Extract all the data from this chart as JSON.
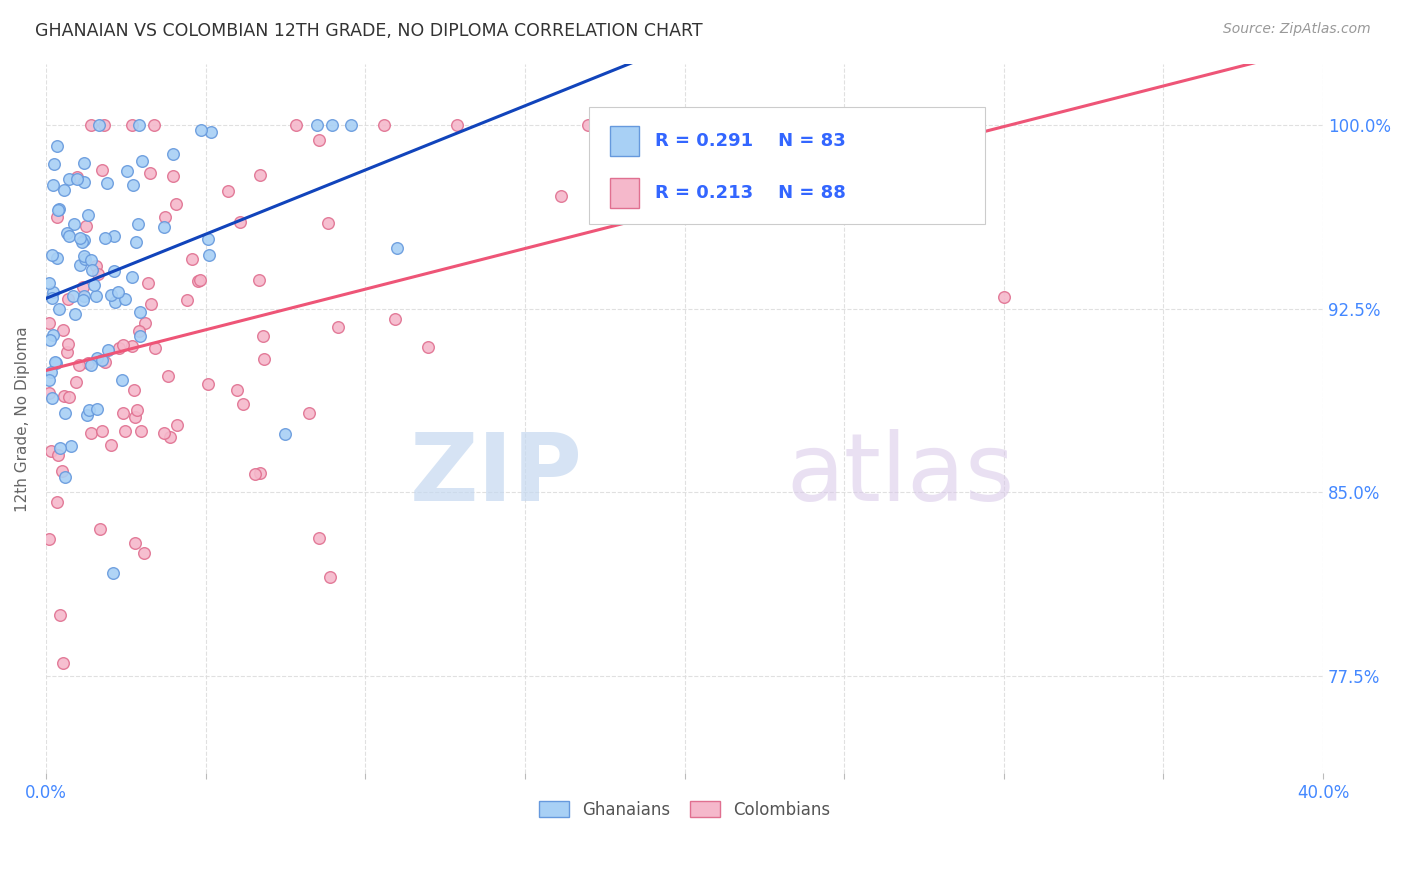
{
  "title": "GHANAIAN VS COLOMBIAN 12TH GRADE, NO DIPLOMA CORRELATION CHART",
  "source": "Source: ZipAtlas.com",
  "ylabel": "12th Grade, No Diploma",
  "xlim": [
    0.0,
    0.4
  ],
  "ylim": [
    0.735,
    1.025
  ],
  "yticks": [
    0.775,
    0.85,
    0.925,
    1.0
  ],
  "ytick_labels": [
    "77.5%",
    "85.0%",
    "92.5%",
    "100.0%"
  ],
  "xticks": [
    0.0,
    0.05,
    0.1,
    0.15,
    0.2,
    0.25,
    0.3,
    0.35,
    0.4
  ],
  "xtick_labels": [
    "0.0%",
    "",
    "",
    "",
    "",
    "",
    "",
    "",
    "40.0%"
  ],
  "ghanaian_color": "#a8d0f5",
  "colombian_color": "#f5b8cb",
  "ghanaian_edge_color": "#6699dd",
  "colombian_edge_color": "#e07090",
  "trend_blue": "#1144bb",
  "trend_pink": "#ee5577",
  "R_ghanaian": 0.291,
  "N_ghanaian": 83,
  "R_colombian": 0.213,
  "N_colombian": 88,
  "legend_label_ghanaian": "Ghanaians",
  "legend_label_colombian": "Colombians",
  "watermark_zip": "ZIP",
  "watermark_atlas": "atlas",
  "background_color": "#ffffff",
  "title_color": "#333333",
  "axis_label_color": "#666666",
  "tick_label_color": "#4488ff",
  "grid_color": "#dddddd",
  "title_fontsize": 12.5,
  "source_fontsize": 10,
  "marker_size": 70,
  "legend_R_color": "#3366ff",
  "legend_N_color": "#3366ff"
}
